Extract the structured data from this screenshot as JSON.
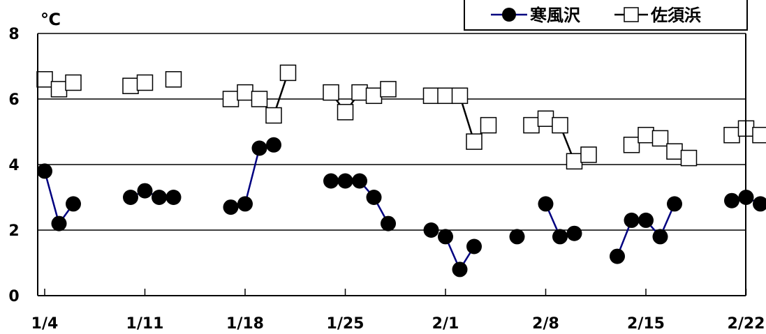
{
  "chart_data": {
    "type": "line",
    "ylabel": "℃",
    "ylim": [
      0,
      8
    ],
    "yticks": [
      0,
      2,
      4,
      6,
      8
    ],
    "xlim": [
      "1/4",
      "2/23"
    ],
    "xticks": [
      "1/4",
      "1/11",
      "1/18",
      "1/25",
      "2/1",
      "2/8",
      "2/15",
      "2/22"
    ],
    "grid": "horizontal",
    "legend_position": "top-right",
    "series": [
      {
        "name": "寒風沢",
        "color": "#000080",
        "marker": "filled-circle",
        "segments": [
          [
            [
              "1/4",
              3.8
            ],
            [
              "1/5",
              2.2
            ],
            [
              "1/6",
              2.8
            ]
          ],
          [
            [
              "1/10",
              3.0
            ],
            [
              "1/11",
              3.2
            ],
            [
              "1/12",
              3.0
            ],
            [
              "1/13",
              3.0
            ]
          ],
          [
            [
              "1/17",
              2.7
            ],
            [
              "1/18",
              2.8
            ],
            [
              "1/19",
              4.5
            ],
            [
              "1/20",
              4.6
            ]
          ],
          [
            [
              "1/24",
              3.5
            ],
            [
              "1/25",
              3.5
            ],
            [
              "1/26",
              3.5
            ],
            [
              "1/27",
              3.0
            ],
            [
              "1/28",
              2.2
            ]
          ],
          [
            [
              "1/31",
              2.0
            ]
          ],
          [
            [
              "2/1",
              1.8
            ],
            [
              "2/2",
              0.8
            ],
            [
              "2/3",
              1.5
            ]
          ],
          [
            [
              "2/6",
              1.8
            ]
          ],
          [
            [
              "2/8",
              2.8
            ],
            [
              "2/9",
              1.8
            ],
            [
              "2/10",
              1.9
            ]
          ],
          [
            [
              "2/13",
              1.2
            ],
            [
              "2/14",
              2.3
            ],
            [
              "2/15",
              2.3
            ],
            [
              "2/16",
              1.8
            ],
            [
              "2/17",
              2.8
            ]
          ],
          [
            [
              "2/21",
              2.9
            ],
            [
              "2/22",
              3.0
            ],
            [
              "2/23",
              2.8
            ]
          ]
        ]
      },
      {
        "name": "佐須浜",
        "color": "#000000",
        "marker": "open-square",
        "segments": [
          [
            [
              "1/4",
              6.6
            ],
            [
              "1/5",
              6.3
            ],
            [
              "1/6",
              6.5
            ]
          ],
          [
            [
              "1/10",
              6.4
            ],
            [
              "1/11",
              6.5
            ]
          ],
          [
            [
              "1/13",
              6.6
            ]
          ],
          [
            [
              "1/17",
              6.0
            ],
            [
              "1/18",
              6.2
            ],
            [
              "1/19",
              6.0
            ],
            [
              "1/20",
              5.5
            ],
            [
              "1/21",
              6.8
            ]
          ],
          [
            [
              "1/24",
              6.2
            ],
            [
              "1/25",
              5.6
            ],
            [
              "1/26",
              6.2
            ],
            [
              "1/27",
              6.1
            ],
            [
              "1/28",
              6.3
            ]
          ],
          [
            [
              "1/31",
              6.1
            ],
            [
              "2/1",
              6.1
            ],
            [
              "2/2",
              6.1
            ],
            [
              "2/3",
              4.7
            ],
            [
              "2/4",
              5.2
            ]
          ],
          [
            [
              "2/7",
              5.2
            ],
            [
              "2/8",
              5.4
            ],
            [
              "2/9",
              5.2
            ],
            [
              "2/10",
              4.1
            ],
            [
              "2/11",
              4.3
            ]
          ],
          [
            [
              "2/14",
              4.6
            ],
            [
              "2/15",
              4.9
            ],
            [
              "2/16",
              4.8
            ],
            [
              "2/17",
              4.4
            ],
            [
              "2/18",
              4.2
            ]
          ],
          [
            [
              "2/21",
              4.9
            ],
            [
              "2/22",
              5.1
            ],
            [
              "2/23",
              4.9
            ]
          ]
        ]
      }
    ]
  }
}
